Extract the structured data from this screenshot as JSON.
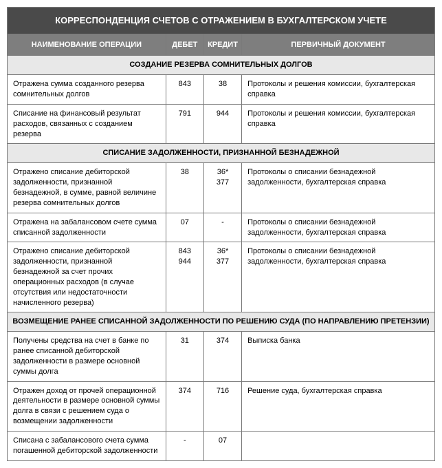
{
  "title": "КОРРЕСПОНДЕНЦИЯ СЧЕТОВ С ОТРАЖЕНИЕМ В БУХГАЛТЕРСКОМ УЧЕТЕ",
  "columns": {
    "op": "НАИМЕНОВАНИЕ ОПЕРАЦИИ",
    "debit": "ДЕБЕТ",
    "credit": "КРЕДИТ",
    "doc": "ПЕРВИЧНЫЙ ДОКУМЕНТ"
  },
  "columnWidths": {
    "op": 230,
    "debit": 55,
    "credit": 55,
    "doc": 280
  },
  "colors": {
    "headerMainBg": "#4a4a4a",
    "headerColBg": "#7e7e7e",
    "sectionBg": "#e8e8e8",
    "border": "#7a7a7a",
    "text": "#000000",
    "headerText": "#ffffff"
  },
  "font": {
    "family": "Arial",
    "baseSize": 11,
    "titleSize": 13
  },
  "sections": [
    {
      "title": "СОЗДАНИЕ РЕЗЕРВА СОМНИТЕЛЬНЫХ ДОЛГОВ",
      "rows": [
        {
          "op": "Отражена сумма созданного резерва сомнительных долгов",
          "debit": "843",
          "credit": "38",
          "doc": "Протоколы и решения комиссии, бухгалтерская справка"
        },
        {
          "op": "Списание на финансовый результат расходов, связанных с созданием резерва",
          "debit": "791",
          "credit": "944",
          "doc": "Протоколы и решения комиссии, бухгалтерская справка"
        }
      ]
    },
    {
      "title": "СПИСАНИЕ ЗАДОЛЖЕННОСТИ, ПРИЗНАННОЙ БЕЗНАДЕЖНОЙ",
      "rows": [
        {
          "op": "Отражено списание дебиторской задолженности, признанной безнадежной, в сумме, равной величине резерва сомнительных долгов",
          "debit": "38",
          "credit": "36*\n377",
          "doc": "Протоколы о списании безнадежной задолженности, бухгалтерская справка"
        },
        {
          "op": "Отражена на забалансовом счете сумма списанной задолженности",
          "debit": "07",
          "credit": "-",
          "doc": "Протоколы о списании безнадежной задолженности, бухгалтерская справка"
        },
        {
          "op": "Отражено списание дебиторской задолженности, признанной безнадежной за счет прочих операционных расходов (в случае отсутствия или недостаточности начисленного резерва)",
          "debit": "843\n944",
          "credit": "36*\n377",
          "doc": "Протоколы о списании безнадежной задолженности, бухгалтерская справка"
        }
      ]
    },
    {
      "title": "ВОЗМЕЩЕНИЕ РАНЕЕ СПИСАННОЙ ЗАДОЛЖЕННОСТИ ПО РЕШЕНИЮ СУДА (ПО НАПРАВЛЕНИЮ ПРЕТЕНЗИИ)",
      "rows": [
        {
          "op": "Получены средства на счет в банке по ранее списанной дебиторской задолженности в размере основной суммы долга",
          "debit": "31",
          "credit": "374",
          "doc": "Выписка банка"
        },
        {
          "op": "Отражен доход от прочей операционной деятельности в размере основной суммы долга в связи с решением суда о возмещении задолженности",
          "debit": "374",
          "credit": "716",
          "doc": "Решение суда, бухгалтерская справка"
        },
        {
          "op": "Списана с забалансового счета сумма погашенной дебиторской задолженности",
          "debit": "-",
          "credit": "07",
          "doc": ""
        }
      ]
    }
  ]
}
